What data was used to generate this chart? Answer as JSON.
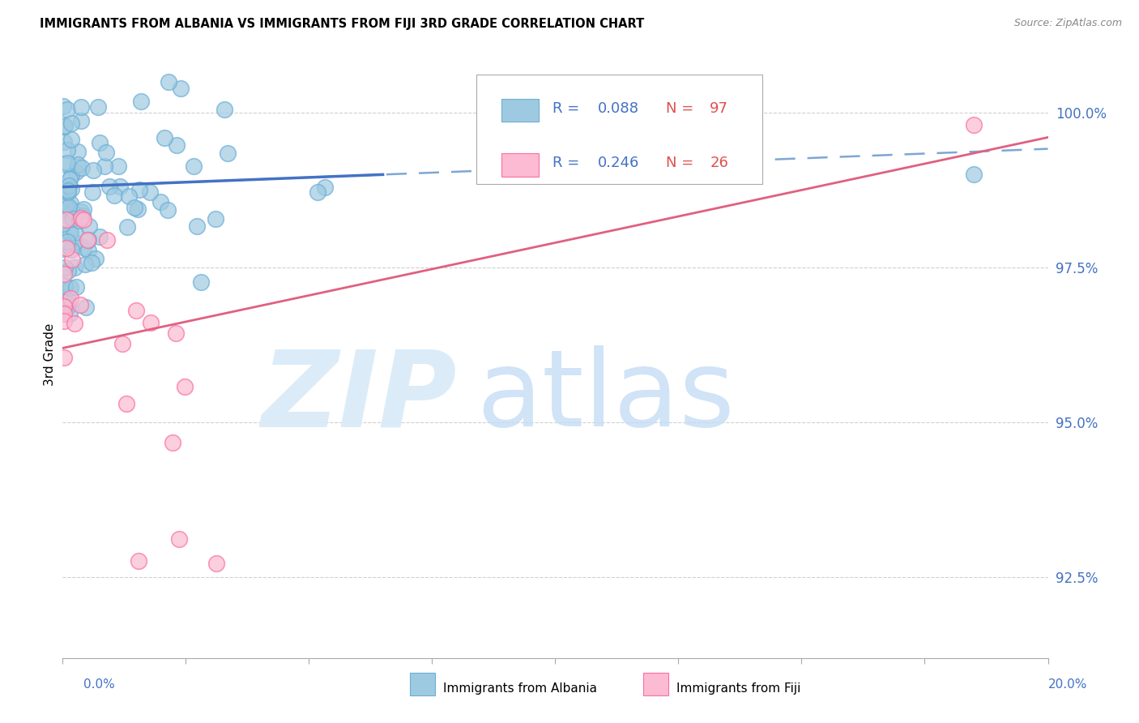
{
  "title": "IMMIGRANTS FROM ALBANIA VS IMMIGRANTS FROM FIJI 3RD GRADE CORRELATION CHART",
  "source": "Source: ZipAtlas.com",
  "ylabel": "3rd Grade",
  "xmin": 0.0,
  "xmax": 20.0,
  "ymin": 91.2,
  "ymax": 101.0,
  "ytick_vals": [
    92.5,
    95.0,
    97.5,
    100.0
  ],
  "blue_color": "#9ecae1",
  "blue_edge": "#6baed6",
  "pink_color": "#fcbbd2",
  "pink_edge": "#fb6fa0",
  "blue_line_color": "#4472c4",
  "blue_dash_color": "#7ea6d4",
  "pink_line_color": "#e06080",
  "ytick_color": "#4472c4",
  "background_color": "#ffffff",
  "grid_color": "#d0d0d0",
  "watermark_zip_color": "#d8eaf8",
  "watermark_atlas_color": "#c5ddf5",
  "legend_r_color": "#4472c4",
  "legend_n_color": "#e05050"
}
